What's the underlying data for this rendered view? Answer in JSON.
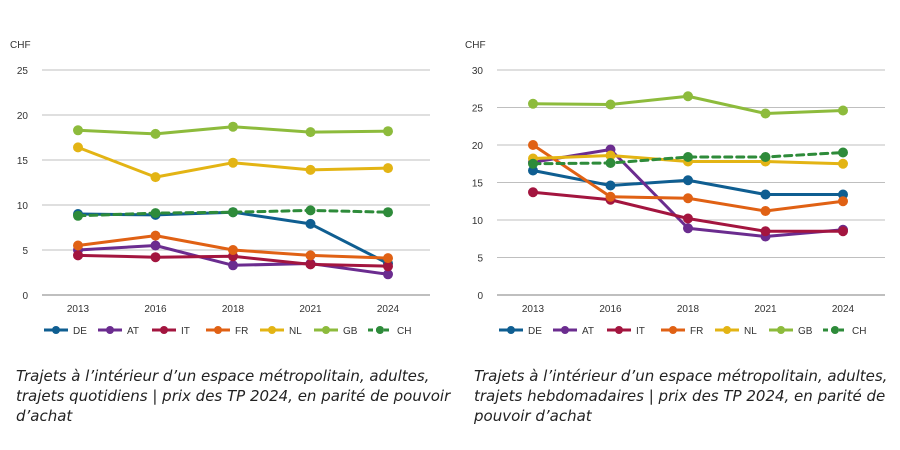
{
  "colors": {
    "DE": "#0f5e91",
    "AT": "#6b2c8f",
    "IT": "#a3153f",
    "FR": "#e06114",
    "NL": "#e3b414",
    "GB": "#8dbb3c",
    "CH": "#2e8b3a",
    "grid": "#bfbfbf",
    "axis": "#7f7f7f",
    "text": "#333333"
  },
  "chart_data": [
    {
      "type": "line",
      "unit_label": "CHF",
      "x": [
        "2013",
        "2016",
        "2018",
        "2021",
        "2024"
      ],
      "ylim": [
        0,
        25
      ],
      "yticks": [
        0,
        5,
        10,
        15,
        20,
        25
      ],
      "grid": true,
      "legend_position": "bottom",
      "series": [
        {
          "name": "DE",
          "values": [
            9.0,
            8.9,
            9.2,
            7.9,
            3.5
          ],
          "dashed": false
        },
        {
          "name": "AT",
          "values": [
            5.0,
            5.5,
            3.3,
            3.5,
            2.3
          ],
          "dashed": false
        },
        {
          "name": "IT",
          "values": [
            4.4,
            4.2,
            4.3,
            3.4,
            3.2
          ],
          "dashed": false
        },
        {
          "name": "FR",
          "values": [
            5.5,
            6.6,
            5.0,
            4.4,
            4.1
          ],
          "dashed": false
        },
        {
          "name": "NL",
          "values": [
            16.4,
            13.1,
            14.7,
            13.9,
            14.1
          ],
          "dashed": false
        },
        {
          "name": "GB",
          "values": [
            18.3,
            17.9,
            18.7,
            18.1,
            18.2
          ],
          "dashed": false
        },
        {
          "name": "CH",
          "values": [
            8.8,
            9.1,
            9.2,
            9.4,
            9.2
          ],
          "dashed": true
        }
      ],
      "caption": "Trajets à l’intérieur d’un espace métropolitain, adultes, trajets quotidiens | prix des TP 2024, en parité de pouvoir d’achat"
    },
    {
      "type": "line",
      "unit_label": "CHF",
      "x": [
        "2013",
        "2016",
        "2018",
        "2021",
        "2024"
      ],
      "ylim": [
        0,
        30
      ],
      "yticks": [
        0,
        5,
        10,
        15,
        20,
        25,
        30
      ],
      "grid": true,
      "legend_position": "bottom",
      "series": [
        {
          "name": "DE",
          "values": [
            16.6,
            14.6,
            15.3,
            13.4,
            13.4
          ],
          "dashed": false
        },
        {
          "name": "AT",
          "values": [
            17.7,
            19.4,
            8.9,
            7.8,
            8.7
          ],
          "dashed": false
        },
        {
          "name": "IT",
          "values": [
            13.7,
            12.7,
            10.2,
            8.5,
            8.5
          ],
          "dashed": false
        },
        {
          "name": "FR",
          "values": [
            20.0,
            13.1,
            12.9,
            11.2,
            12.5
          ],
          "dashed": false
        },
        {
          "name": "NL",
          "values": [
            18.2,
            18.6,
            17.8,
            17.8,
            17.5
          ],
          "dashed": false
        },
        {
          "name": "GB",
          "values": [
            25.5,
            25.4,
            26.5,
            24.2,
            24.6
          ],
          "dashed": false
        },
        {
          "name": "CH",
          "values": [
            17.5,
            17.6,
            18.4,
            18.4,
            19.0
          ],
          "dashed": true
        }
      ],
      "caption": "Trajets à l’intérieur d’un espace métropolitain, adultes, trajets hebdomadaires | prix des TP 2024, en parité de pouvoir d’achat"
    }
  ]
}
